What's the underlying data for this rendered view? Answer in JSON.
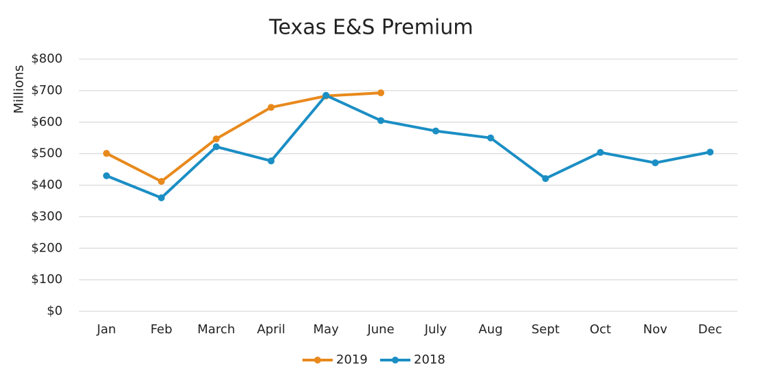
{
  "chart_data": {
    "type": "line",
    "title": "Texas E&S Premium",
    "y_label": "Millions",
    "categories": [
      "Jan",
      "Feb",
      "March",
      "April",
      "May",
      "June",
      "July",
      "Aug",
      "Sept",
      "Oct",
      "Nov",
      "Dec"
    ],
    "series": [
      {
        "name": "2019",
        "color": "#e8891c",
        "values": [
          501,
          412,
          547,
          647,
          683,
          693,
          null,
          null,
          null,
          null,
          null,
          null
        ]
      },
      {
        "name": "2018",
        "color": "#1b8ec4",
        "values": [
          430,
          360,
          522,
          477,
          685,
          605,
          572,
          550,
          421,
          504,
          471,
          505
        ]
      }
    ],
    "ylim": [
      0,
      800
    ],
    "yticks": [
      {
        "value": 0,
        "label": "$0"
      },
      {
        "value": 100,
        "label": "$100"
      },
      {
        "value": 200,
        "label": "$200"
      },
      {
        "value": 300,
        "label": "$300"
      },
      {
        "value": 400,
        "label": "$400"
      },
      {
        "value": 500,
        "label": "$500"
      },
      {
        "value": 600,
        "label": "$600"
      },
      {
        "value": 700,
        "label": "$700"
      },
      {
        "value": 800,
        "label": "$800"
      }
    ],
    "grid": true,
    "legend": "bottom"
  }
}
